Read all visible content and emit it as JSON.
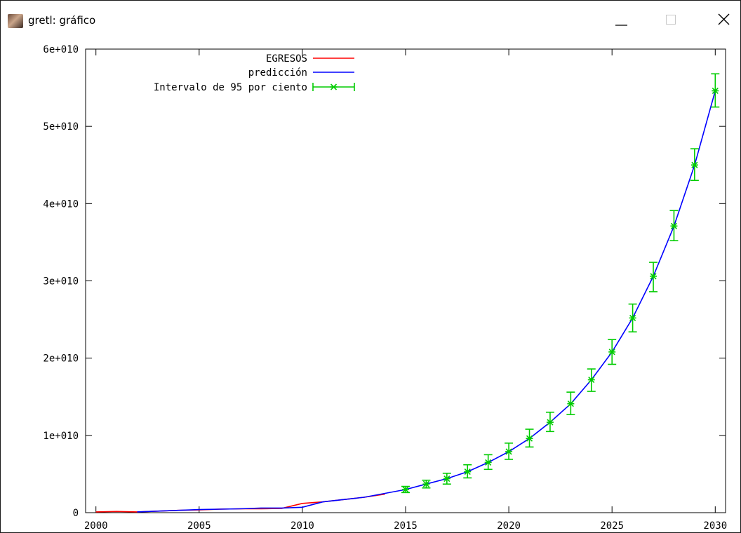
{
  "window": {
    "title": "gretl: gráfico",
    "icons": {
      "app": "gretl-app-icon",
      "minimize": "minimize-icon",
      "maximize": "maximize-icon",
      "close": "close-icon"
    }
  },
  "chart_data": {
    "type": "line",
    "title": "",
    "xlabel": "",
    "ylabel": "",
    "xlim": [
      1999.5,
      2030.5
    ],
    "ylim": [
      0,
      60000000000
    ],
    "x_ticks": [
      2000,
      2005,
      2010,
      2015,
      2020,
      2025,
      2030
    ],
    "x_tick_labels": [
      "2000",
      "2005",
      "2010",
      "2015",
      "2020",
      "2025",
      "2030"
    ],
    "y_ticks": [
      0,
      10000000000,
      20000000000,
      30000000000,
      40000000000,
      50000000000,
      60000000000
    ],
    "y_tick_labels": [
      "0",
      "1e+010",
      "2e+010",
      "3e+010",
      "4e+010",
      "5e+010",
      "6e+010"
    ],
    "grid": false,
    "legend_position": "top-left",
    "legend": [
      {
        "label": "EGRESOS",
        "kind": "line",
        "color": "#ff0000"
      },
      {
        "label": "predicción",
        "kind": "line",
        "color": "#0000ff"
      },
      {
        "label": "Intervalo de 95 por ciento",
        "kind": "errorbar",
        "color": "#00cc00"
      }
    ],
    "series": [
      {
        "name": "EGRESOS",
        "color": "#ff0000",
        "x": [
          2000,
          2001,
          2002,
          2003,
          2004,
          2005,
          2006,
          2007,
          2008,
          2009,
          2010,
          2011,
          2012,
          2013,
          2014
        ],
        "y": [
          100000000,
          150000000,
          100000000,
          200000000,
          300000000,
          350000000,
          450000000,
          500000000,
          500000000,
          550000000,
          1200000000,
          1400000000,
          1700000000,
          2000000000,
          2400000000
        ]
      },
      {
        "name": "predicción",
        "color": "#0000ff",
        "x": [
          2002,
          2003,
          2004,
          2005,
          2006,
          2007,
          2008,
          2009,
          2010,
          2011,
          2012,
          2013,
          2014,
          2015,
          2016,
          2017,
          2018,
          2019,
          2020,
          2021,
          2022,
          2023,
          2024,
          2025,
          2026,
          2027,
          2028,
          2029,
          2030
        ],
        "y": [
          100000000,
          200000000,
          300000000,
          400000000,
          450000000,
          500000000,
          600000000,
          600000000,
          700000000,
          1400000000,
          1700000000,
          2000000000,
          2500000000,
          3000000000,
          3700000000,
          4400000000,
          5300000000,
          6500000000,
          7900000000,
          9600000000,
          11700000000,
          14100000000,
          17200000000,
          20800000000,
          25200000000,
          30600000000,
          37100000000,
          45000000000,
          54600000000
        ]
      },
      {
        "name": "Intervalo de 95 por ciento",
        "color": "#00cc00",
        "x": [
          2015,
          2016,
          2017,
          2018,
          2019,
          2020,
          2021,
          2022,
          2023,
          2024,
          2025,
          2026,
          2027,
          2028,
          2029,
          2030
        ],
        "y": [
          3000000000,
          3700000000,
          4400000000,
          5300000000,
          6500000000,
          7900000000,
          9600000000,
          11700000000,
          14100000000,
          17200000000,
          20800000000,
          25200000000,
          30600000000,
          37100000000,
          45000000000,
          54600000000
        ],
        "lower": [
          2600000000,
          3200000000,
          3700000000,
          4500000000,
          5600000000,
          6900000000,
          8500000000,
          10500000000,
          12700000000,
          15700000000,
          19200000000,
          23400000000,
          28600000000,
          35200000000,
          43000000000,
          52500000000
        ],
        "upper": [
          3400000000,
          4200000000,
          5100000000,
          6200000000,
          7500000000,
          9000000000,
          10800000000,
          13000000000,
          15600000000,
          18600000000,
          22400000000,
          27000000000,
          32400000000,
          39100000000,
          47100000000,
          56800000000
        ]
      }
    ]
  }
}
